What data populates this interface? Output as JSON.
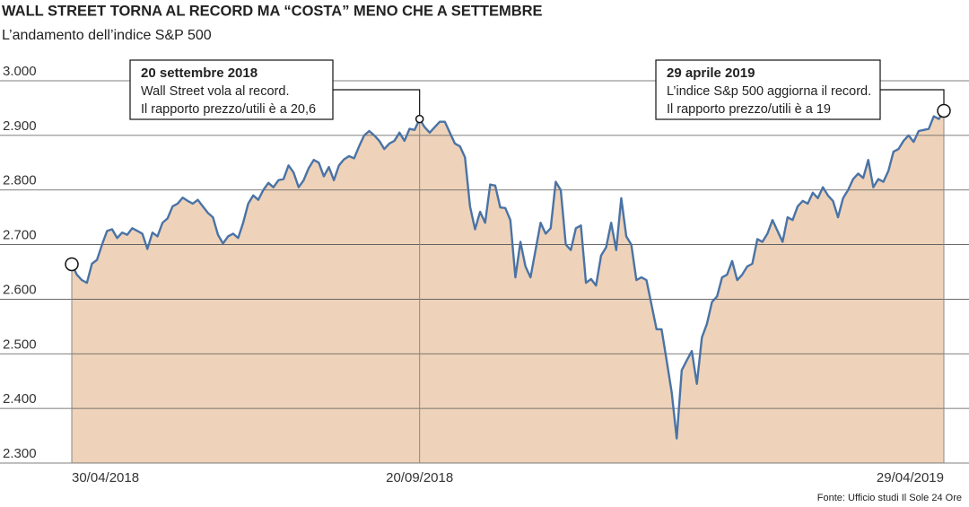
{
  "chart_data": {
    "type": "area",
    "title": "WALL STREET TORNA AL RECORD MA “COSTA” MENO CHE A SETTEMBRE",
    "subtitle": "L’andamento dell’indice S&P 500",
    "source": "Fonte: Ufficio studi Il Sole 24 Ore",
    "color": "#4a73a6",
    "area_color": "#eed3ba",
    "grid": true,
    "ylim": [
      2300,
      3000
    ],
    "yticks": [
      {
        "value": 2300,
        "label": "2.300"
      },
      {
        "value": 2400,
        "label": "2.400"
      },
      {
        "value": 2500,
        "label": "2.500"
      },
      {
        "value": 2600,
        "label": "2.600"
      },
      {
        "value": 2700,
        "label": "2.700"
      },
      {
        "value": 2800,
        "label": "2.800"
      },
      {
        "value": 2900,
        "label": "2.900"
      },
      {
        "value": 3000,
        "label": "3.000"
      }
    ],
    "categories": [
      "30/04/2018",
      null,
      null,
      null,
      null,
      null,
      null,
      null,
      null,
      null,
      null,
      null,
      null,
      null,
      null,
      null,
      null,
      null,
      null,
      null,
      null,
      null,
      null,
      null,
      null,
      null,
      null,
      null,
      null,
      null,
      null,
      null,
      null,
      null,
      null,
      null,
      null,
      null,
      null,
      null,
      null,
      null,
      null,
      null,
      null,
      null,
      null,
      null,
      null,
      null,
      null,
      null,
      null,
      null,
      null,
      null,
      null,
      null,
      null,
      null,
      null,
      null,
      null,
      null,
      null,
      null,
      null,
      null,
      null,
      "20/09/2018",
      null,
      null,
      null,
      null,
      null,
      null,
      null,
      null,
      null,
      null,
      null,
      null,
      null,
      null,
      null,
      null,
      null,
      null,
      null,
      null,
      null,
      null,
      null,
      null,
      null,
      null,
      null,
      null,
      null,
      null,
      null,
      null,
      null,
      null,
      null,
      null,
      null,
      null,
      null,
      null,
      null,
      null,
      null,
      null,
      null,
      null,
      null,
      null,
      null,
      null,
      null,
      null,
      null,
      null,
      null,
      null,
      null,
      null,
      null,
      null,
      null,
      null,
      null,
      null,
      null,
      null,
      null,
      null,
      null,
      null,
      null,
      null,
      null,
      null,
      null,
      null,
      null,
      null,
      null,
      null,
      null,
      null,
      null,
      null,
      null,
      null,
      null,
      null,
      null,
      null,
      null,
      null,
      null,
      null,
      null,
      null,
      null,
      null,
      null,
      null,
      null,
      null,
      null,
      "29/04/2019"
    ],
    "values": [
      2664,
      2645,
      2635,
      2630,
      2665,
      2672,
      2700,
      2725,
      2728,
      2712,
      2722,
      2718,
      2730,
      2725,
      2720,
      2692,
      2722,
      2715,
      2740,
      2748,
      2770,
      2775,
      2786,
      2780,
      2775,
      2782,
      2770,
      2758,
      2750,
      2718,
      2702,
      2715,
      2720,
      2712,
      2740,
      2775,
      2790,
      2782,
      2800,
      2813,
      2805,
      2818,
      2820,
      2845,
      2832,
      2805,
      2818,
      2840,
      2855,
      2850,
      2825,
      2842,
      2818,
      2845,
      2856,
      2862,
      2858,
      2880,
      2900,
      2908,
      2900,
      2890,
      2875,
      2885,
      2890,
      2905,
      2890,
      2912,
      2910,
      2930,
      2915,
      2905,
      2915,
      2925,
      2925,
      2905,
      2885,
      2880,
      2860,
      2770,
      2728,
      2760,
      2740,
      2810,
      2808,
      2768,
      2767,
      2745,
      2640,
      2705,
      2660,
      2640,
      2690,
      2740,
      2720,
      2730,
      2815,
      2800,
      2700,
      2690,
      2730,
      2735,
      2630,
      2637,
      2625,
      2680,
      2695,
      2740,
      2690,
      2785,
      2715,
      2700,
      2635,
      2640,
      2635,
      2590,
      2545,
      2545,
      2488,
      2430,
      2345,
      2470,
      2488,
      2505,
      2445,
      2530,
      2555,
      2595,
      2605,
      2640,
      2645,
      2670,
      2635,
      2645,
      2660,
      2665,
      2710,
      2705,
      2720,
      2745,
      2725,
      2705,
      2750,
      2745,
      2770,
      2780,
      2775,
      2795,
      2785,
      2805,
      2790,
      2780,
      2750,
      2785,
      2800,
      2820,
      2830,
      2822,
      2855,
      2805,
      2820,
      2815,
      2835,
      2870,
      2875,
      2890,
      2900,
      2888,
      2908,
      2910,
      2912,
      2935,
      2930,
      2945
    ],
    "annotations": [
      {
        "title": "20 settembre 2018",
        "lines": [
          "Wall Street vola al record.",
          "Il rapporto prezzo/utili è a 20,6"
        ]
      },
      {
        "title": "29 aprile 2019",
        "lines": [
          "L’indice S&p 500 aggiorna il record.",
          "Il rapporto prezzo/utili è a 19"
        ]
      }
    ]
  }
}
